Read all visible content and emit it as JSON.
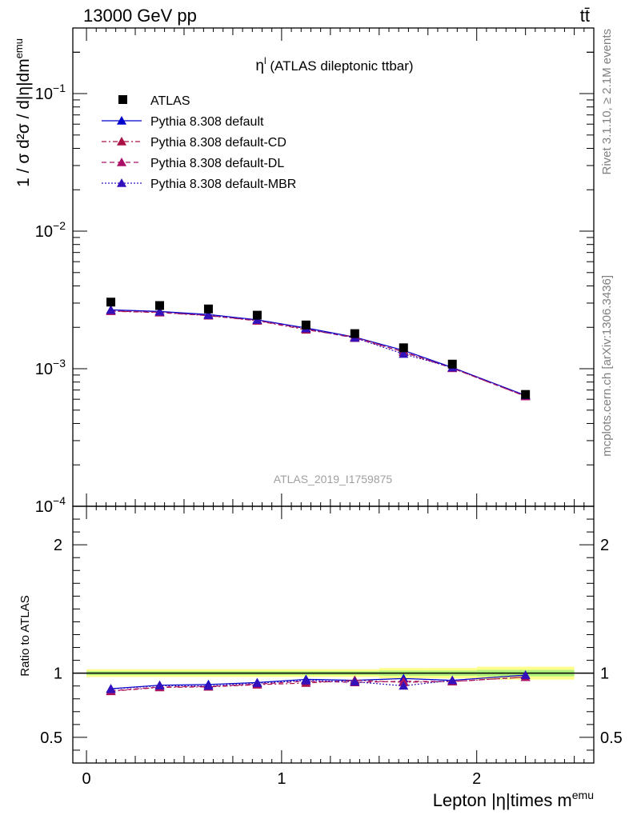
{
  "header": {
    "left": "13000 GeV pp",
    "right": "tt̄"
  },
  "side_labels": {
    "rivet": "Rivet 3.1.10, ≥ 2.1M events",
    "mcplots": "mcplots.cern.ch [arXiv:1306.3436]"
  },
  "chart_data": {
    "type": "scatter",
    "title": "η",
    "title_sup": "l",
    "title_rest": " (ATLAS dileptonic ttbar)",
    "watermark": "ATLAS_2019_I1759875",
    "xlabel": "Lepton |η|times m",
    "xlabel_sup": "emu",
    "ylabel": "1 / σ  d²σ / d|η|dm",
    "ylabel_sup": "emu",
    "ratio_ylabel": "Ratio to ATLAS",
    "xlim": [
      -0.07,
      2.6
    ],
    "ylim": [
      0.0001,
      0.3
    ],
    "yscale": "log",
    "ratio_ylim": [
      0.3,
      2.3
    ],
    "x_ticks": [
      0,
      1,
      2
    ],
    "y_ticks": [
      {
        "value": 0.1,
        "label": "10",
        "exp": "−1"
      },
      {
        "value": 0.01,
        "label": "10",
        "exp": "−2"
      },
      {
        "value": 0.001,
        "label": "10",
        "exp": "−3"
      },
      {
        "value": 0.0001,
        "label": "10",
        "exp": "−4"
      }
    ],
    "ratio_ticks": [
      0.5,
      1,
      2
    ],
    "ratio_tick_labels": [
      "0.5",
      "1",
      "2"
    ],
    "bins": [
      [
        0,
        0.25
      ],
      [
        0.25,
        0.5
      ],
      [
        0.5,
        0.75
      ],
      [
        0.75,
        1.0
      ],
      [
        1.0,
        1.25
      ],
      [
        1.25,
        1.5
      ],
      [
        1.5,
        1.75
      ],
      [
        1.75,
        2.0
      ],
      [
        2.0,
        2.5
      ]
    ],
    "x": [
      0.125,
      0.375,
      0.625,
      0.875,
      1.125,
      1.375,
      1.625,
      1.875,
      2.25
    ],
    "data": {
      "name": "ATLAS",
      "values": [
        0.00305,
        0.00288,
        0.00272,
        0.00245,
        0.00208,
        0.0018,
        0.00142,
        0.00108,
        0.00065
      ],
      "color": "#000000"
    },
    "band_rel_err": [
      0.03,
      0.03,
      0.03,
      0.03,
      0.03,
      0.03,
      0.04,
      0.04,
      0.05
    ],
    "series": [
      {
        "name": "Pythia 8.308 default",
        "color": "#0000cc",
        "dash": "",
        "values": [
          0.00268,
          0.00261,
          0.00248,
          0.00227,
          0.00198,
          0.0017,
          0.00136,
          0.00102,
          0.00064
        ]
      },
      {
        "name": "Pythia 8.308 default-CD",
        "color": "#aa1144",
        "dash": "6,3,2,3",
        "values": [
          0.00262,
          0.00256,
          0.00243,
          0.00223,
          0.00192,
          0.0017,
          0.00132,
          0.00101,
          0.00063
        ]
      },
      {
        "name": "Pythia 8.308 default-DL",
        "color": "#aa1166",
        "dash": "6,4",
        "values": [
          0.00263,
          0.00257,
          0.00244,
          0.00224,
          0.00195,
          0.00167,
          0.00133,
          0.00101,
          0.00063
        ]
      },
      {
        "name": "Pythia 8.308 default-MBR",
        "color": "#3311bb",
        "dash": "2,2",
        "values": [
          0.00267,
          0.0026,
          0.00245,
          0.00226,
          0.00196,
          0.00168,
          0.00128,
          0.00102,
          0.00064
        ]
      }
    ]
  }
}
